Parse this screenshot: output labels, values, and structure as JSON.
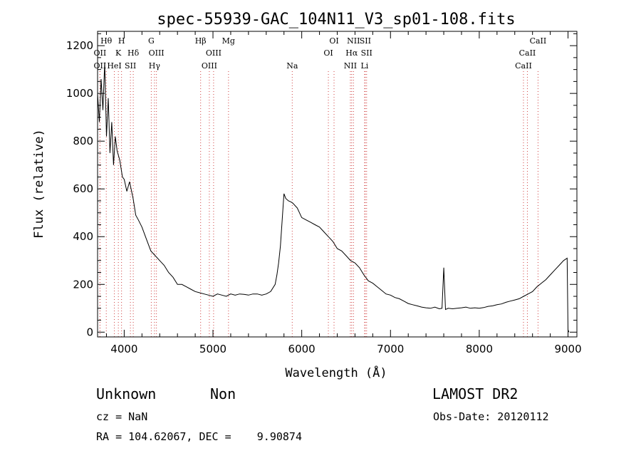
{
  "chart_data": {
    "type": "line",
    "title": "spec-55939-GAC_104N11_V3_sp01-108.fits",
    "xlabel": "Wavelength (Å)",
    "ylabel": "Flux (relative)",
    "xlim": [
      3700,
      9100
    ],
    "ylim": [
      -20,
      1260
    ],
    "xticks": [
      4000,
      5000,
      6000,
      7000,
      8000,
      9000
    ],
    "yticks": [
      0,
      200,
      400,
      600,
      800,
      1000,
      1200
    ],
    "grid": false,
    "series": [
      {
        "x": [
          3700,
          3720,
          3740,
          3760,
          3780,
          3800,
          3820,
          3840,
          3860,
          3880,
          3900,
          3920,
          3950,
          3980,
          4000,
          4030,
          4060,
          4100,
          4130,
          4160,
          4200,
          4250,
          4300,
          4350,
          4400,
          4450,
          4500,
          4550,
          4600,
          4650,
          4700,
          4750,
          4800,
          4850,
          4900,
          4950,
          5000,
          5050,
          5100,
          5150,
          5200,
          5250,
          5300,
          5350,
          5400,
          5450,
          5500,
          5550,
          5600,
          5650,
          5700,
          5720,
          5740,
          5760,
          5780,
          5800,
          5820,
          5850,
          5880,
          5900,
          5950,
          6000,
          6050,
          6100,
          6150,
          6200,
          6250,
          6300,
          6350,
          6400,
          6450,
          6500,
          6550,
          6600,
          6650,
          6700,
          6750,
          6800,
          6850,
          6900,
          6950,
          7000,
          7050,
          7100,
          7150,
          7200,
          7250,
          7300,
          7350,
          7400,
          7450,
          7500,
          7550,
          7580,
          7600,
          7620,
          7650,
          7700,
          7750,
          7800,
          7850,
          7900,
          7950,
          8000,
          8050,
          8100,
          8150,
          8200,
          8250,
          8300,
          8350,
          8400,
          8450,
          8500,
          8550,
          8600,
          8650,
          8700,
          8750,
          8800,
          8850,
          8900,
          8950,
          8990,
          9000,
          9010
        ],
        "y": [
          1000,
          880,
          1060,
          930,
          1130,
          820,
          980,
          750,
          880,
          700,
          820,
          760,
          720,
          650,
          640,
          590,
          630,
          560,
          490,
          470,
          440,
          390,
          340,
          320,
          300,
          280,
          250,
          230,
          200,
          200,
          190,
          180,
          170,
          165,
          160,
          155,
          150,
          160,
          155,
          150,
          160,
          155,
          160,
          158,
          155,
          160,
          160,
          155,
          160,
          170,
          200,
          240,
          290,
          360,
          470,
          580,
          560,
          550,
          545,
          540,
          520,
          480,
          470,
          460,
          450,
          440,
          420,
          400,
          380,
          350,
          340,
          320,
          300,
          290,
          270,
          240,
          215,
          205,
          190,
          175,
          160,
          155,
          145,
          140,
          130,
          120,
          115,
          110,
          105,
          102,
          100,
          105,
          98,
          100,
          270,
          95,
          100,
          98,
          100,
          102,
          105,
          100,
          102,
          100,
          103,
          108,
          110,
          115,
          118,
          125,
          130,
          135,
          140,
          150,
          160,
          170,
          190,
          205,
          220,
          240,
          260,
          280,
          300,
          310,
          10,
          0
        ]
      }
    ],
    "spectral_lines": [
      {
        "name": "Hθ",
        "x": 3798,
        "row": 1
      },
      {
        "name": "H",
        "x": 3970,
        "row": 1
      },
      {
        "name": "OII",
        "x": 3727,
        "row": 2
      },
      {
        "name": "K",
        "x": 3934,
        "row": 2
      },
      {
        "name": "Hδ",
        "x": 4102,
        "row": 2
      },
      {
        "name": "OII",
        "x": 3727,
        "row": 3
      },
      {
        "name": "HeI",
        "x": 3889,
        "row": 3
      },
      {
        "name": "SII",
        "x": 4070,
        "row": 3
      },
      {
        "name": "G",
        "x": 4305,
        "row": 1
      },
      {
        "name": "OIII",
        "x": 4363,
        "row": 2
      },
      {
        "name": "Hγ",
        "x": 4341,
        "row": 3
      },
      {
        "name": "Hβ",
        "x": 4861,
        "row": 1
      },
      {
        "name": "OIII",
        "x": 5007,
        "row": 2
      },
      {
        "name": "OIII",
        "x": 4959,
        "row": 3
      },
      {
        "name": "Mg",
        "x": 5175,
        "row": 1
      },
      {
        "name": "Na",
        "x": 5893,
        "row": 3
      },
      {
        "name": "OI",
        "x": 6364,
        "row": 1
      },
      {
        "name": "OI",
        "x": 6300,
        "row": 2
      },
      {
        "name": "NII",
        "x": 6583,
        "row": 1
      },
      {
        "name": "SII",
        "x": 6716,
        "row": 1
      },
      {
        "name": "Hα",
        "x": 6563,
        "row": 2
      },
      {
        "name": "SII",
        "x": 6731,
        "row": 2
      },
      {
        "name": "NII",
        "x": 6548,
        "row": 3
      },
      {
        "name": "Li",
        "x": 6708,
        "row": 3
      },
      {
        "name": "CaII",
        "x": 8662,
        "row": 1
      },
      {
        "name": "CaII",
        "x": 8542,
        "row": 2
      },
      {
        "name": "CaII",
        "x": 8498,
        "row": 3
      }
    ],
    "colors": {
      "spectrum": "#000000",
      "line_markers": "#d04040"
    }
  },
  "footer": {
    "class_label": "Unknown",
    "subclass_label": "Non",
    "survey": "LAMOST DR2",
    "cz": "cz = NaN",
    "obs_date": "Obs-Date: 20120112",
    "coords": "RA = 104.62067, DEC =    9.90874"
  }
}
